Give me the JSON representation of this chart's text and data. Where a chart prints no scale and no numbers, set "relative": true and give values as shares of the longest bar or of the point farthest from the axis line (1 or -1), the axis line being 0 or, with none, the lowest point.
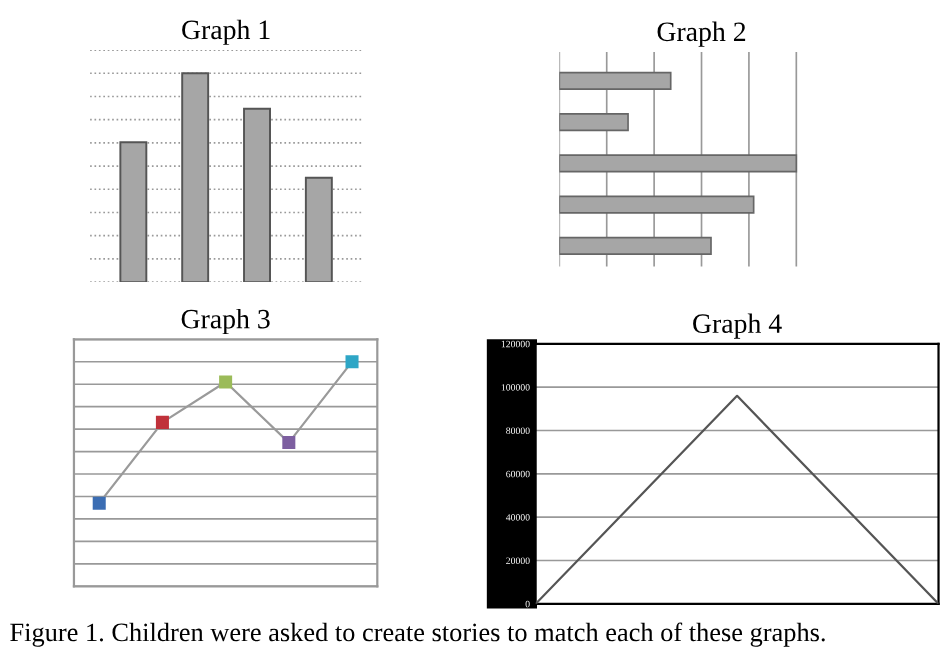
{
  "chart_data": [
    {
      "type": "bar",
      "title": "Graph 1",
      "categories": [
        null,
        null,
        null,
        null
      ],
      "relative": true,
      "grid": "y",
      "line_style": "dotted",
      "series": [
        {
          "color": "#a6a6a6",
          "values": [
            0.67,
            1,
            0.83,
            0.5
          ]
        }
      ]
    },
    {
      "type": "bar",
      "title": "Graph 2",
      "orientation": "horizontal",
      "categories": [
        null,
        null,
        null,
        null,
        null
      ],
      "relative": true,
      "grid": "x",
      "series": [
        {
          "color": "#a6a6a6",
          "values": [
            0.47,
            0.29,
            1,
            0.82,
            0.64
          ]
        }
      ]
    },
    {
      "type": "line",
      "title": "Graph 3",
      "categories": [
        null,
        null,
        null,
        null,
        null
      ],
      "relative": true,
      "grid": "y",
      "marker": "square",
      "series": [
        {
          "color": "#9a9a9a",
          "colors": [
            "#3b6db3",
            "#c0313a",
            "#9bbb59",
            "#7d5fa0",
            "#2ea6c6"
          ],
          "values": [
            0.37,
            0.73,
            0.91,
            0.64,
            1
          ]
        }
      ]
    },
    {
      "type": "line",
      "title": "Graph 4",
      "categories": [
        null,
        null,
        null
      ],
      "ylim": [
        0,
        120000
      ],
      "yticks": [
        0,
        20000,
        40000,
        60000,
        80000,
        100000,
        120000
      ],
      "grid": "y",
      "annotations": [
        "Figure 1. Children were asked to create stories to match each of these graphs."
      ],
      "series": [
        {
          "color": "#555555",
          "values": [
            0,
            96000,
            0
          ]
        }
      ]
    }
  ]
}
